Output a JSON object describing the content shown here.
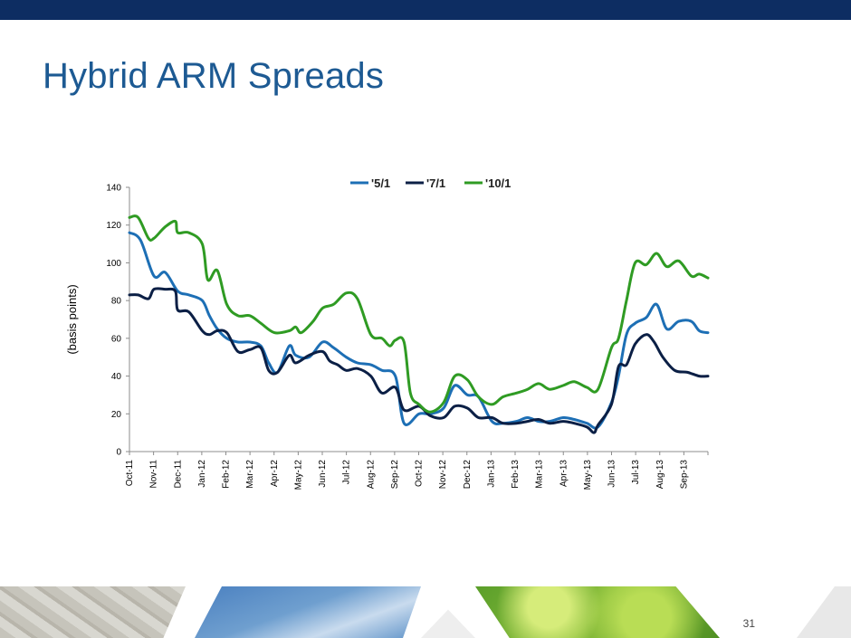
{
  "slide": {
    "title": "Hybrid ARM Spreads",
    "page_number": "31",
    "colors": {
      "top_bar": "#0d2d62",
      "title": "#1d5a93",
      "axis": "#8c8c8c"
    }
  },
  "chart_data": {
    "type": "line",
    "title": "",
    "xlabel": "",
    "ylabel": "(basis points)",
    "ylim": [
      0,
      140
    ],
    "yticks": [
      0,
      20,
      40,
      60,
      80,
      100,
      120,
      140
    ],
    "grid": false,
    "legend_placement": "top-center",
    "categories": [
      "Oct-11",
      "Nov-11",
      "Dec-11",
      "Jan-12",
      "Feb-12",
      "Mar-12",
      "Apr-12",
      "May-12",
      "Jun-12",
      "Jul-12",
      "Aug-12",
      "Sep-12",
      "Oct-12",
      "Nov-12",
      "Dec-12",
      "Jan-13",
      "Feb-13",
      "Mar-13",
      "Apr-13",
      "May-13",
      "Jun-13",
      "Jul-13",
      "Aug-13",
      "Sep-13"
    ],
    "x_start": "2011-10-01",
    "x_end": "2013-10-01",
    "series": [
      {
        "name": "'5/1",
        "color": "#1d6fb5",
        "points": [
          [
            "2011-10-01",
            116
          ],
          [
            "2011-10-15",
            112
          ],
          [
            "2011-11-01",
            93
          ],
          [
            "2011-11-15",
            95
          ],
          [
            "2011-12-01",
            85
          ],
          [
            "2011-12-15",
            83
          ],
          [
            "2012-01-01",
            80
          ],
          [
            "2012-01-10",
            72
          ],
          [
            "2012-01-20",
            65
          ],
          [
            "2012-02-01",
            60
          ],
          [
            "2012-02-15",
            58
          ],
          [
            "2012-03-01",
            58
          ],
          [
            "2012-03-15",
            56
          ],
          [
            "2012-03-25",
            47
          ],
          [
            "2012-04-05",
            42
          ],
          [
            "2012-04-20",
            56
          ],
          [
            "2012-04-28",
            51
          ],
          [
            "2012-05-15",
            50
          ],
          [
            "2012-06-01",
            58
          ],
          [
            "2012-06-15",
            55
          ],
          [
            "2012-07-01",
            50
          ],
          [
            "2012-07-15",
            47
          ],
          [
            "2012-08-01",
            46
          ],
          [
            "2012-08-15",
            43
          ],
          [
            "2012-09-01",
            40
          ],
          [
            "2012-09-12",
            15
          ],
          [
            "2012-10-01",
            20
          ],
          [
            "2012-10-15",
            20
          ],
          [
            "2012-11-01",
            23
          ],
          [
            "2012-11-15",
            35
          ],
          [
            "2012-12-01",
            30
          ],
          [
            "2012-12-15",
            29
          ],
          [
            "2013-01-01",
            16
          ],
          [
            "2013-01-15",
            15
          ],
          [
            "2013-02-01",
            16
          ],
          [
            "2013-02-15",
            18
          ],
          [
            "2013-03-01",
            16
          ],
          [
            "2013-03-15",
            16
          ],
          [
            "2013-04-01",
            18
          ],
          [
            "2013-04-15",
            17
          ],
          [
            "2013-05-01",
            15
          ],
          [
            "2013-05-15",
            13
          ],
          [
            "2013-06-01",
            26
          ],
          [
            "2013-06-10",
            40
          ],
          [
            "2013-06-20",
            62
          ],
          [
            "2013-07-01",
            68
          ],
          [
            "2013-07-15",
            71
          ],
          [
            "2013-07-28",
            78
          ],
          [
            "2013-08-10",
            65
          ],
          [
            "2013-08-25",
            69
          ],
          [
            "2013-09-10",
            69
          ],
          [
            "2013-09-20",
            64
          ],
          [
            "2013-10-01",
            63
          ]
        ]
      },
      {
        "name": "'7/1",
        "color": "#0b1f45",
        "points": [
          [
            "2011-10-01",
            83
          ],
          [
            "2011-10-12",
            83
          ],
          [
            "2011-10-25",
            81
          ],
          [
            "2011-11-01",
            86
          ],
          [
            "2011-11-15",
            86
          ],
          [
            "2011-11-28",
            85
          ],
          [
            "2011-12-01",
            75
          ],
          [
            "2011-12-15",
            74
          ],
          [
            "2012-01-01",
            64
          ],
          [
            "2012-01-10",
            62
          ],
          [
            "2012-01-20",
            64
          ],
          [
            "2012-02-01",
            63
          ],
          [
            "2012-02-15",
            53
          ],
          [
            "2012-03-01",
            54
          ],
          [
            "2012-03-15",
            55
          ],
          [
            "2012-03-25",
            43
          ],
          [
            "2012-04-05",
            42
          ],
          [
            "2012-04-20",
            51
          ],
          [
            "2012-04-28",
            47
          ],
          [
            "2012-05-15",
            51
          ],
          [
            "2012-06-01",
            53
          ],
          [
            "2012-06-10",
            48
          ],
          [
            "2012-06-20",
            46
          ],
          [
            "2012-07-01",
            43
          ],
          [
            "2012-07-15",
            44
          ],
          [
            "2012-08-01",
            40
          ],
          [
            "2012-08-15",
            31
          ],
          [
            "2012-09-01",
            34
          ],
          [
            "2012-09-12",
            22
          ],
          [
            "2012-10-01",
            24
          ],
          [
            "2012-10-15",
            19
          ],
          [
            "2012-11-01",
            18
          ],
          [
            "2012-11-15",
            24
          ],
          [
            "2012-12-01",
            23
          ],
          [
            "2012-12-15",
            18
          ],
          [
            "2013-01-01",
            18
          ],
          [
            "2013-01-15",
            15
          ],
          [
            "2013-02-01",
            15
          ],
          [
            "2013-02-15",
            16
          ],
          [
            "2013-03-01",
            17
          ],
          [
            "2013-03-15",
            15
          ],
          [
            "2013-04-01",
            16
          ],
          [
            "2013-04-15",
            15
          ],
          [
            "2013-05-01",
            13
          ],
          [
            "2013-05-10",
            10
          ],
          [
            "2013-05-15",
            14
          ],
          [
            "2013-06-01",
            25
          ],
          [
            "2013-06-10",
            45
          ],
          [
            "2013-06-20",
            46
          ],
          [
            "2013-07-01",
            57
          ],
          [
            "2013-07-15",
            62
          ],
          [
            "2013-07-25",
            58
          ],
          [
            "2013-08-05",
            50
          ],
          [
            "2013-08-20",
            43
          ],
          [
            "2013-09-05",
            42
          ],
          [
            "2013-09-20",
            40
          ],
          [
            "2013-10-01",
            40
          ]
        ]
      },
      {
        "name": "'10/1",
        "color": "#2f9b23",
        "points": [
          [
            "2011-10-01",
            124
          ],
          [
            "2011-10-12",
            124
          ],
          [
            "2011-10-25",
            113
          ],
          [
            "2011-11-01",
            113
          ],
          [
            "2011-11-15",
            119
          ],
          [
            "2011-11-28",
            122
          ],
          [
            "2011-12-01",
            116
          ],
          [
            "2011-12-15",
            116
          ],
          [
            "2012-01-01",
            110
          ],
          [
            "2012-01-08",
            91
          ],
          [
            "2012-01-20",
            96
          ],
          [
            "2012-02-01",
            78
          ],
          [
            "2012-02-15",
            72
          ],
          [
            "2012-03-01",
            72
          ],
          [
            "2012-03-15",
            68
          ],
          [
            "2012-04-01",
            63
          ],
          [
            "2012-04-20",
            64
          ],
          [
            "2012-04-28",
            66
          ],
          [
            "2012-05-05",
            63
          ],
          [
            "2012-05-20",
            69
          ],
          [
            "2012-06-01",
            76
          ],
          [
            "2012-06-15",
            78
          ],
          [
            "2012-07-01",
            84
          ],
          [
            "2012-07-15",
            81
          ],
          [
            "2012-08-01",
            62
          ],
          [
            "2012-08-15",
            60
          ],
          [
            "2012-08-25",
            56
          ],
          [
            "2012-09-01",
            59
          ],
          [
            "2012-09-12",
            58
          ],
          [
            "2012-09-20",
            31
          ],
          [
            "2012-10-01",
            25
          ],
          [
            "2012-10-15",
            21
          ],
          [
            "2012-11-01",
            26
          ],
          [
            "2012-11-15",
            40
          ],
          [
            "2012-12-01",
            38
          ],
          [
            "2012-12-15",
            29
          ],
          [
            "2013-01-01",
            25
          ],
          [
            "2013-01-15",
            29
          ],
          [
            "2013-02-01",
            31
          ],
          [
            "2013-02-15",
            33
          ],
          [
            "2013-03-01",
            36
          ],
          [
            "2013-03-15",
            33
          ],
          [
            "2013-04-01",
            35
          ],
          [
            "2013-04-15",
            37
          ],
          [
            "2013-05-01",
            34
          ],
          [
            "2013-05-15",
            33
          ],
          [
            "2013-06-01",
            55
          ],
          [
            "2013-06-10",
            60
          ],
          [
            "2013-06-20",
            80
          ],
          [
            "2013-07-01",
            100
          ],
          [
            "2013-07-15",
            99
          ],
          [
            "2013-07-28",
            105
          ],
          [
            "2013-08-10",
            98
          ],
          [
            "2013-08-25",
            101
          ],
          [
            "2013-09-10",
            93
          ],
          [
            "2013-09-20",
            94
          ],
          [
            "2013-10-01",
            92
          ]
        ]
      }
    ]
  },
  "footer": {
    "tiles": [
      {
        "name": "rope",
        "color": "#d8d7d0"
      },
      {
        "name": "sky",
        "color": "#6f9fcf"
      },
      {
        "name": "blank",
        "color": "#eeeeee"
      },
      {
        "name": "leaves",
        "color": "#8bbf3c"
      },
      {
        "name": "blank-right",
        "color": "#e8e8e8"
      }
    ]
  }
}
